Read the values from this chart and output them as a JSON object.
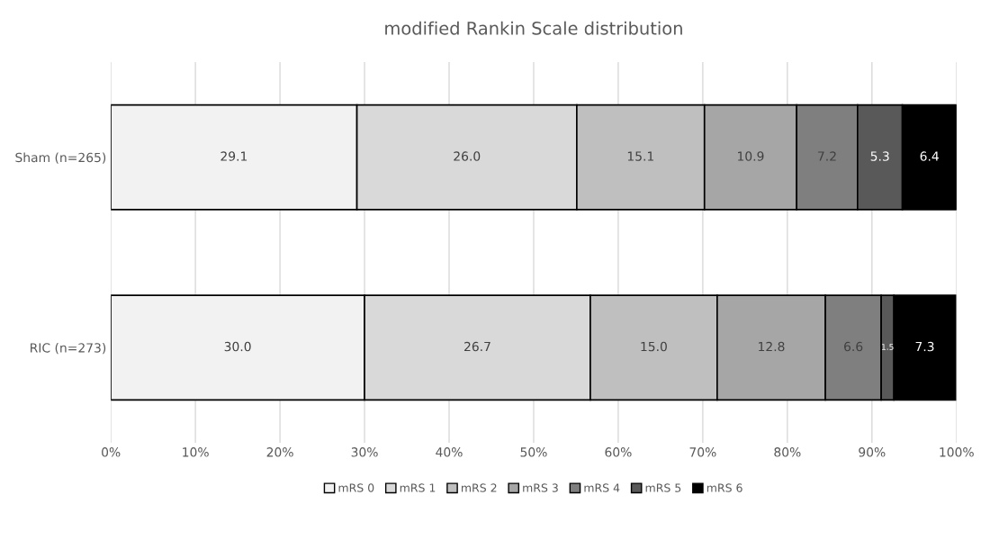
{
  "chart_data": {
    "type": "bar",
    "orientation": "horizontal",
    "stacked": true,
    "title": "modified Rankin Scale distribution",
    "categories": [
      "Sham (n=265)",
      "RIC (n=273)"
    ],
    "series": [
      {
        "name": "mRS 0",
        "color": "#f2f2f2",
        "values": [
          29.1,
          30.0
        ],
        "value_labels": [
          "29.1",
          "30.0"
        ]
      },
      {
        "name": "mRS 1",
        "color": "#d9d9d9",
        "values": [
          26.0,
          26.7
        ],
        "value_labels": [
          "26.0",
          "26.7"
        ]
      },
      {
        "name": "mRS 2",
        "color": "#bfbfbf",
        "values": [
          15.1,
          15.0
        ],
        "value_labels": [
          "15.1",
          "15.0"
        ]
      },
      {
        "name": "mRS 3",
        "color": "#a6a6a6",
        "values": [
          10.9,
          12.8
        ],
        "value_labels": [
          "10.9",
          "12.8"
        ]
      },
      {
        "name": "mRS 4",
        "color": "#7f7f7f",
        "values": [
          7.2,
          6.6
        ],
        "value_labels": [
          "7.2",
          "6.6"
        ]
      },
      {
        "name": "mRS 5",
        "color": "#595959",
        "values": [
          5.3,
          1.5
        ],
        "value_labels": [
          "5.3",
          "1.5"
        ]
      },
      {
        "name": "mRS 6",
        "color": "#000000",
        "values": [
          6.4,
          7.3
        ],
        "value_labels": [
          "6.4",
          "7.3"
        ]
      }
    ],
    "xlim": [
      0,
      100
    ],
    "xticks": [
      {
        "value": 0,
        "label": "0%"
      },
      {
        "value": 10,
        "label": "10%"
      },
      {
        "value": 20,
        "label": "20%"
      },
      {
        "value": 30,
        "label": "30%"
      },
      {
        "value": 40,
        "label": "40%"
      },
      {
        "value": 50,
        "label": "50%"
      },
      {
        "value": 60,
        "label": "60%"
      },
      {
        "value": 70,
        "label": "70%"
      },
      {
        "value": 80,
        "label": "80%"
      },
      {
        "value": 90,
        "label": "90%"
      },
      {
        "value": 100,
        "label": "100%"
      }
    ],
    "data_labels": true,
    "grid": "x",
    "legend": "bottom"
  }
}
